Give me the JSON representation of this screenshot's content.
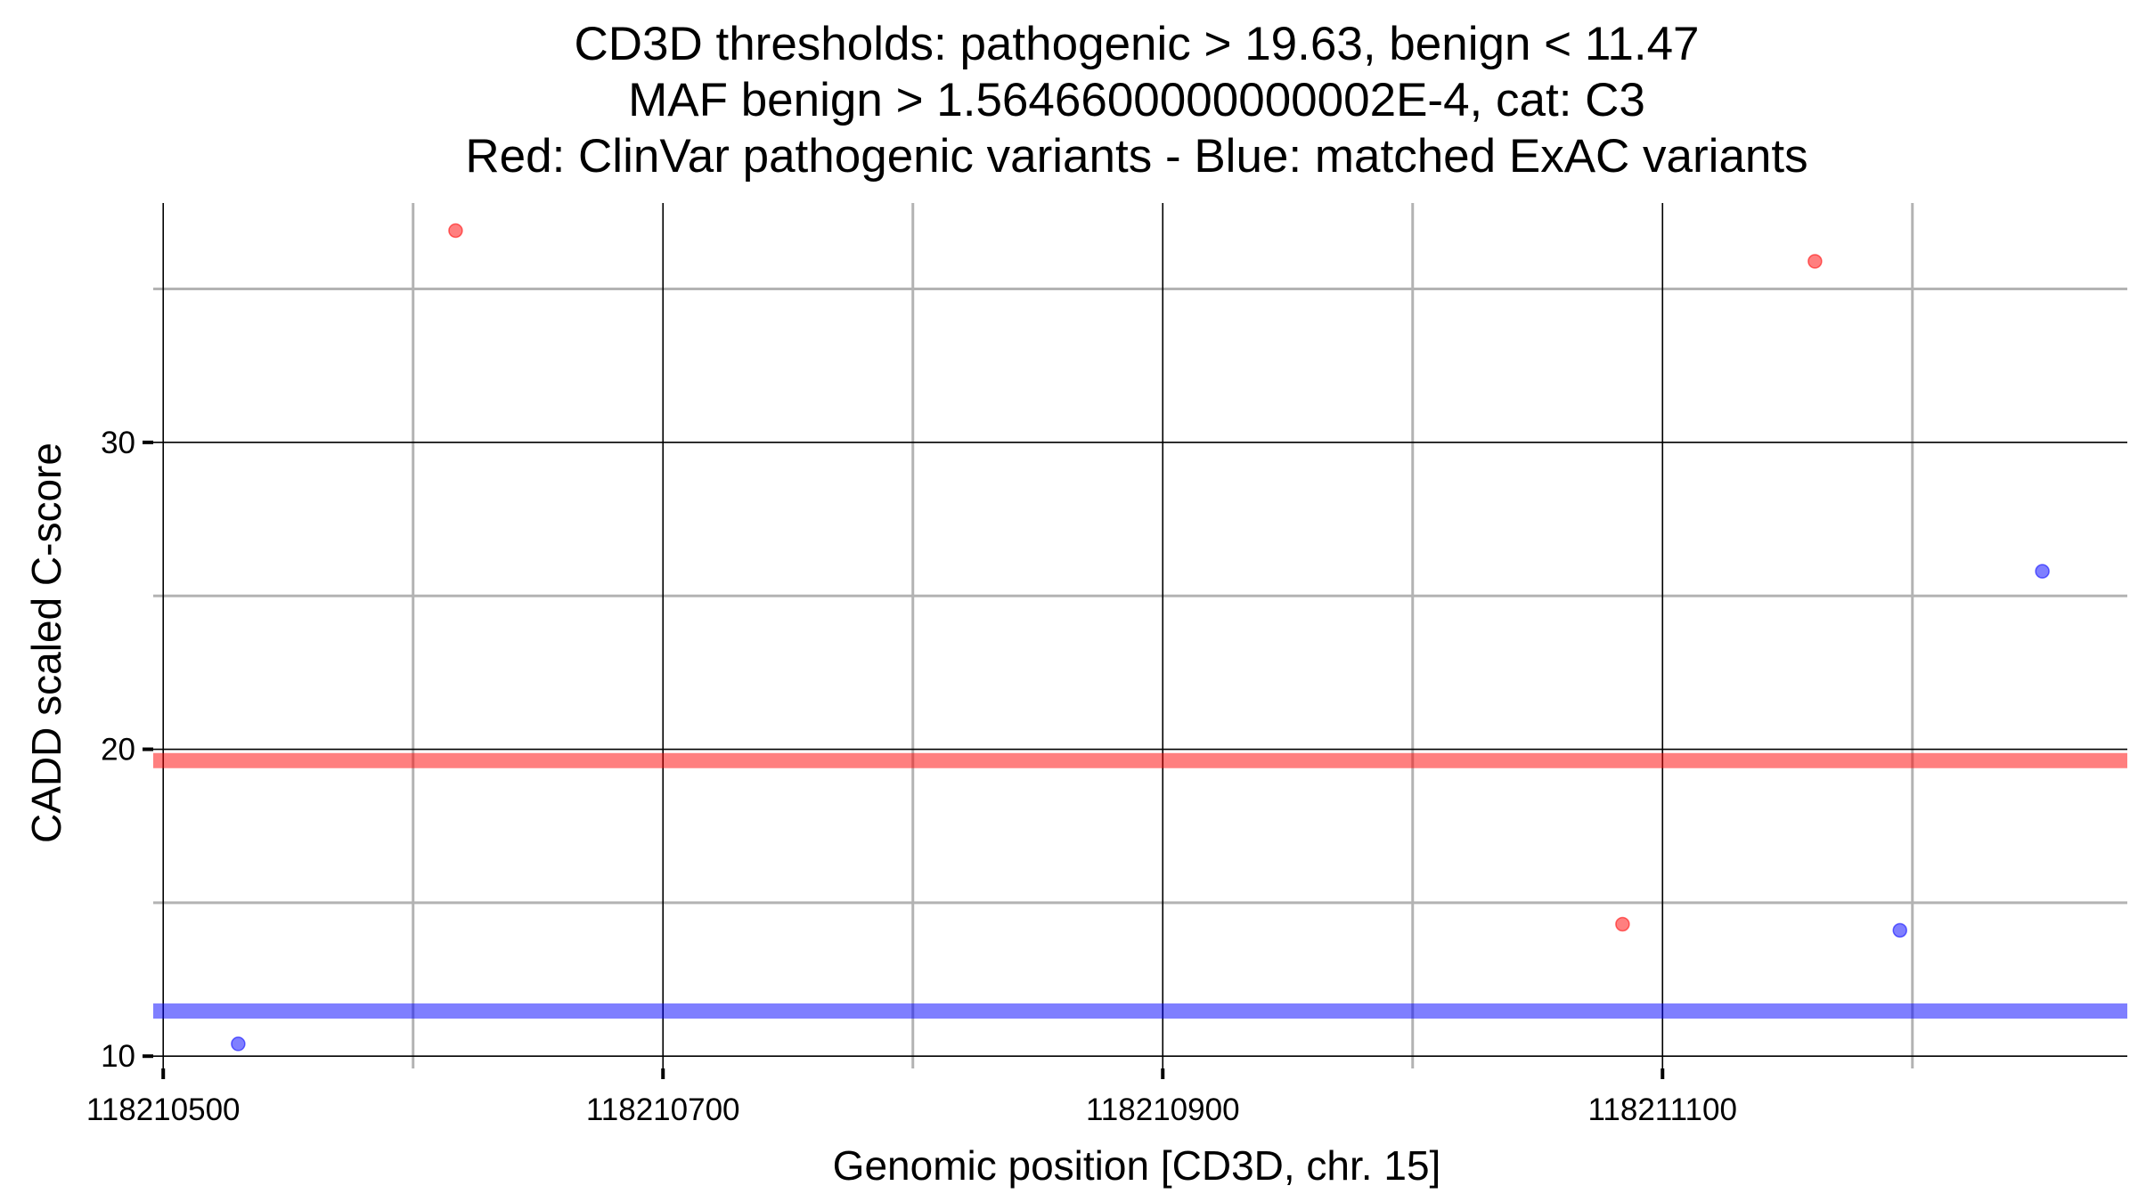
{
  "chart_data": {
    "type": "scatter",
    "title_lines": [
      "CD3D thresholds: pathogenic > 19.63, benign < 11.47",
      "MAF benign > 1.5646600000000002E-4, cat: C3",
      "Red: ClinVar pathogenic variants - Blue: matched ExAC variants"
    ],
    "xlabel": "Genomic position [CD3D, chr. 15]",
    "ylabel": "CADD scaled C-score",
    "xlim": [
      118210496,
      118211286
    ],
    "ylim": [
      9.6,
      37.8
    ],
    "x_ticks": [
      118210500,
      118210700,
      118210900,
      118211100
    ],
    "x_tick_labels": [
      "118210500",
      "118210700",
      "118210900",
      "118211100"
    ],
    "x_minor_gridlines": [
      118210600,
      118210800,
      118211000,
      118211200
    ],
    "y_ticks": [
      10,
      20,
      30
    ],
    "y_tick_labels": [
      "10",
      "20",
      "30"
    ],
    "y_minor_gridlines": [
      15,
      25,
      35
    ],
    "thresholds": [
      {
        "name": "pathogenic",
        "value": 19.63,
        "color": "#ff0000"
      },
      {
        "name": "benign",
        "value": 11.47,
        "color": "#0000ff"
      }
    ],
    "series": [
      {
        "name": "ClinVar pathogenic variants",
        "color": "#ff0000",
        "points": [
          {
            "x": 118210617,
            "y": 36.9
          },
          {
            "x": 118211084,
            "y": 14.3
          },
          {
            "x": 118211161,
            "y": 35.9
          }
        ]
      },
      {
        "name": "matched ExAC variants",
        "color": "#0000ff",
        "points": [
          {
            "x": 118210530,
            "y": 10.4
          },
          {
            "x": 118211195,
            "y": 14.1
          },
          {
            "x": 118211252,
            "y": 25.8
          }
        ]
      }
    ]
  }
}
